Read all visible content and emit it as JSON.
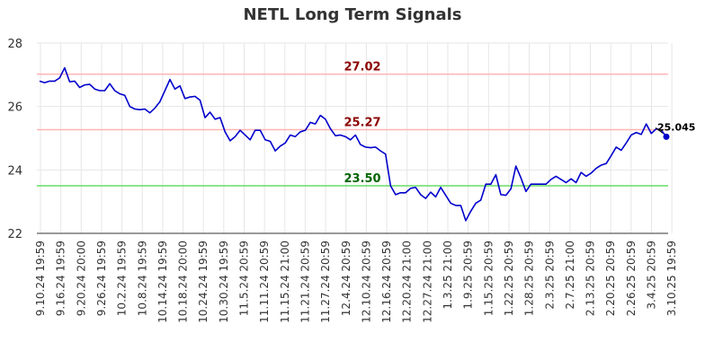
{
  "chart_data": {
    "type": "line",
    "title": "NETL Long Term Signals",
    "xlabel": "",
    "ylabel": "",
    "ylim": [
      22,
      28
    ],
    "y_ticks": [
      "22",
      "24",
      "26",
      "28"
    ],
    "x_tick_labels": [
      "9.10.24 19:59",
      "9.16.24 19:59",
      "9.20.24 20:00",
      "9.26.24 19:59",
      "10.2.24 19:59",
      "10.8.24 19:59",
      "10.14.24 19:59",
      "10.18.24 20:00",
      "10.24.24 19:59",
      "10.30.24 19:59",
      "11.5.24 20:59",
      "11.11.24 20:59",
      "11.15.24 21:00",
      "11.21.24 20:59",
      "11.27.24 20:59",
      "12.4.24 20:59",
      "12.10.24 20:59",
      "12.16.24 20:59",
      "12.20.24 21:00",
      "12.27.24 21:00",
      "1.3.25 21:00",
      "1.9.25 20:59",
      "1.15.25 20:59",
      "1.22.25 20:59",
      "1.28.25 20:59",
      "2.3.25 20:59",
      "2.7.25 21:00",
      "2.13.25 20:59",
      "2.20.25 20:59",
      "2.26.25 20:59",
      "3.4.25 20:59",
      "3.10.25 19:59"
    ],
    "grid": true,
    "series": [
      {
        "color": "#0000cc",
        "values": [
          26.8,
          26.75,
          26.8,
          26.8,
          26.9,
          27.22,
          26.78,
          26.8,
          26.6,
          26.68,
          26.7,
          26.55,
          26.5,
          26.5,
          26.72,
          26.5,
          26.4,
          26.35,
          26.0,
          25.92,
          25.9,
          25.92,
          25.8,
          25.95,
          26.15,
          26.5,
          26.85,
          26.55,
          26.65,
          26.25,
          26.3,
          26.32,
          26.2,
          25.65,
          25.82,
          25.6,
          25.65,
          25.2,
          24.92,
          25.05,
          25.25,
          25.1,
          24.95,
          25.25,
          25.25,
          24.95,
          24.9,
          24.6,
          24.75,
          24.85,
          25.1,
          25.05,
          25.2,
          25.25,
          25.5,
          25.45,
          25.72,
          25.6,
          25.3,
          25.08,
          25.1,
          25.05,
          24.95,
          25.1,
          24.8,
          24.72,
          24.7,
          24.72,
          24.6,
          24.5,
          23.5,
          23.22,
          23.28,
          23.28,
          23.42,
          23.45,
          23.22,
          23.1,
          23.3,
          23.15,
          23.45,
          23.2,
          22.95,
          22.88,
          22.88,
          22.4,
          22.7,
          22.95,
          23.05,
          23.55,
          23.55,
          23.85,
          23.22,
          23.2,
          23.4,
          24.12,
          23.75,
          23.32,
          23.55,
          23.55,
          23.55,
          23.55,
          23.7,
          23.8,
          23.7,
          23.6,
          23.72,
          23.6,
          23.92,
          23.8,
          23.9,
          24.05,
          24.15,
          24.2,
          24.45,
          24.72,
          24.62,
          24.85,
          25.1,
          25.18,
          25.12,
          25.45,
          25.15,
          25.3,
          25.25,
          25.045
        ]
      }
    ],
    "signal_lines": [
      {
        "value": 27.02,
        "label": "27.02",
        "color": "#ffb3b3",
        "label_color": "#8b0000"
      },
      {
        "value": 25.27,
        "label": "25.27",
        "color": "#ffb3b3",
        "label_color": "#8b0000"
      },
      {
        "value": 23.5,
        "label": "23.50",
        "color": "#66dd66",
        "label_color": "#006400"
      }
    ],
    "last_point": {
      "value": 25.045,
      "label": "25.045",
      "color": "#0000cc"
    }
  }
}
